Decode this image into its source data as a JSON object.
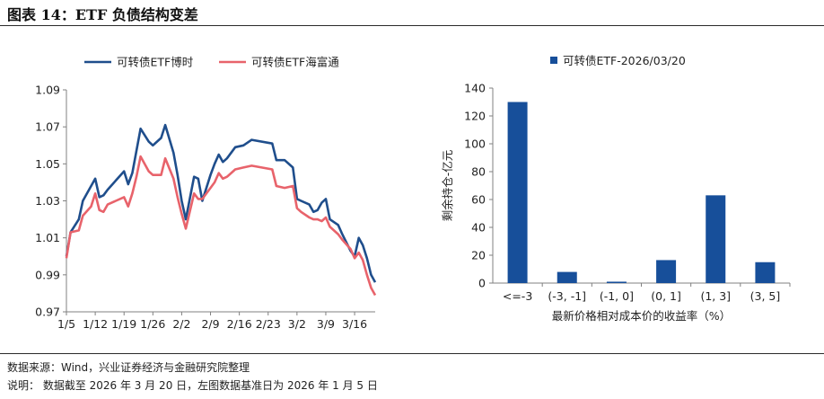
{
  "header": {
    "title": "图表 14：ETF 负债结构变差"
  },
  "footer": {
    "source": "数据来源：Wind，兴业证券经济与金融研究院整理",
    "note": "说明：  数据截至 2026 年 3 月 20 日，左图数据基准日为 2026 年 1 月 5 日"
  },
  "colors": {
    "series1": "#1f4e8c",
    "series2": "#e8636b",
    "bar": "#174f9a",
    "axis": "#808080"
  },
  "chart_data": [
    {
      "type": "line",
      "title": "",
      "xlabel": "",
      "ylabel": "",
      "ylim": [
        0.97,
        1.09
      ],
      "yticks": [
        "0.97",
        "0.99",
        "1.01",
        "1.03",
        "1.05",
        "1.07",
        "1.09"
      ],
      "x_ticks": [
        "1/5",
        "1/12",
        "1/19",
        "1/26",
        "2/2",
        "2/9",
        "2/16",
        "2/23",
        "3/2",
        "3/9",
        "3/16"
      ],
      "x_index_range": [
        0,
        75
      ],
      "legend": "top",
      "series": [
        {
          "name": "可转债ETF博时",
          "x": [
            0,
            1,
            3,
            4,
            6,
            7,
            8,
            9,
            10,
            12,
            14,
            15,
            16,
            17,
            18,
            20,
            21,
            23,
            24,
            26,
            27,
            28,
            29,
            31,
            32,
            33,
            35,
            36,
            37,
            38,
            39,
            41,
            43,
            45,
            50,
            51,
            53,
            55,
            56,
            57,
            59,
            60,
            61,
            62,
            63,
            64,
            66,
            67,
            69,
            70,
            71,
            72,
            73,
            74,
            75
          ],
          "y": [
            1.0,
            1.013,
            1.02,
            1.03,
            1.038,
            1.042,
            1.032,
            1.033,
            1.036,
            1.041,
            1.046,
            1.039,
            1.045,
            1.057,
            1.069,
            1.062,
            1.06,
            1.064,
            1.071,
            1.056,
            1.044,
            1.03,
            1.02,
            1.043,
            1.042,
            1.03,
            1.044,
            1.05,
            1.055,
            1.051,
            1.053,
            1.059,
            1.06,
            1.063,
            1.061,
            1.052,
            1.052,
            1.048,
            1.031,
            1.03,
            1.028,
            1.024,
            1.025,
            1.029,
            1.031,
            1.02,
            1.017,
            1.012,
            1.003,
            1.0,
            1.01,
            1.006,
            0.999,
            0.99,
            0.986
          ]
        },
        {
          "name": "可转债ETF海富通",
          "x": [
            0,
            1,
            3,
            4,
            6,
            7,
            8,
            9,
            10,
            12,
            14,
            15,
            16,
            17,
            18,
            20,
            21,
            23,
            24,
            26,
            27,
            28,
            29,
            31,
            32,
            33,
            35,
            36,
            37,
            38,
            39,
            41,
            43,
            45,
            50,
            51,
            53,
            55,
            56,
            57,
            59,
            60,
            61,
            62,
            63,
            64,
            66,
            67,
            69,
            70,
            71,
            72,
            73,
            74,
            75
          ],
          "y": [
            0.999,
            1.013,
            1.014,
            1.022,
            1.027,
            1.034,
            1.025,
            1.024,
            1.028,
            1.03,
            1.032,
            1.027,
            1.034,
            1.043,
            1.054,
            1.046,
            1.044,
            1.044,
            1.053,
            1.042,
            1.032,
            1.023,
            1.015,
            1.034,
            1.031,
            1.031,
            1.037,
            1.04,
            1.045,
            1.042,
            1.043,
            1.047,
            1.048,
            1.049,
            1.047,
            1.038,
            1.037,
            1.038,
            1.026,
            1.024,
            1.021,
            1.02,
            1.02,
            1.019,
            1.021,
            1.016,
            1.012,
            1.009,
            1.004,
            0.999,
            1.002,
            0.998,
            0.99,
            0.983,
            0.979
          ]
        }
      ]
    },
    {
      "type": "bar",
      "title": "",
      "legend_label": "可转债ETF-2026/03/20",
      "xlabel": "最新价格相对成本价的收益率（%）",
      "ylabel": "剩余持仓-亿元",
      "ylim": [
        0,
        140
      ],
      "yticks": [
        "0",
        "20",
        "40",
        "60",
        "80",
        "100",
        "120",
        "140"
      ],
      "categories": [
        "<=-3",
        "(-3, -1]",
        "(-1, 0]",
        "(0, 1]",
        "(1, 3]",
        "(3, 5]"
      ],
      "values": [
        130,
        8,
        1,
        16.5,
        63,
        15
      ]
    }
  ]
}
